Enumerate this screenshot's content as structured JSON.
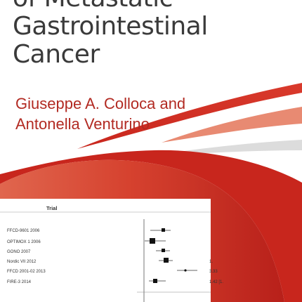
{
  "title_lines": [
    "of Metastatic",
    "Gastrointestinal",
    "Cancer"
  ],
  "authors": [
    "Giuseppe A. Colloca and",
    "Antonella Venturino"
  ],
  "colors": {
    "title": "#3a3a3a",
    "authors": "#b22a22",
    "red": "#c8261d",
    "salmon": "#e88a72",
    "grey": "#dcdcdc"
  },
  "forest_plot": {
    "header": "Trial",
    "trials": [
      {
        "label": "FFCD-9601 2006",
        "value_text": ""
      },
      {
        "label": "OPTIMOX 1 2006",
        "value_text": ""
      },
      {
        "label": "GONO 2007",
        "value_text": ""
      },
      {
        "label": "Nordic VII 2012",
        "value_text": "1."
      },
      {
        "label": "FFCD 2001-02 2013",
        "value_text": "3.33"
      },
      {
        "label": "FIRE-3 2014",
        "value_text": "1.42 [1."
      }
    ]
  }
}
